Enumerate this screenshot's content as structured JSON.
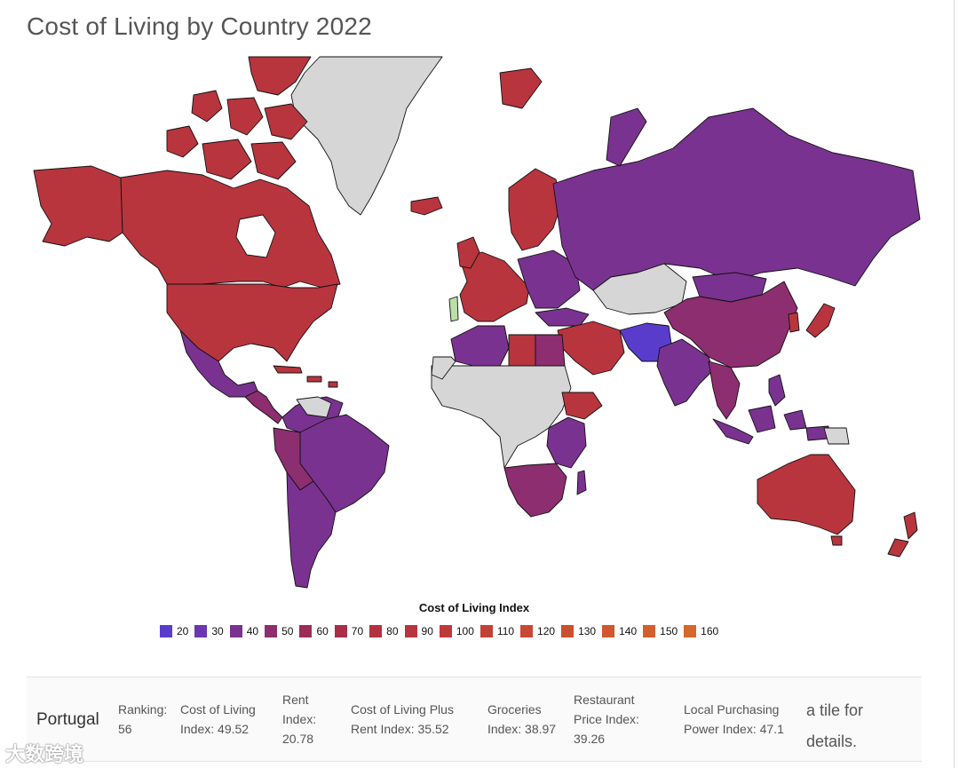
{
  "title": "Cost of Living by Country 2022",
  "legend": {
    "title": "Cost of Living Index",
    "items": [
      {
        "label": "20",
        "color": "#5a3ccc"
      },
      {
        "label": "30",
        "color": "#6b37b2"
      },
      {
        "label": "40",
        "color": "#7a3290"
      },
      {
        "label": "50",
        "color": "#8c2e70"
      },
      {
        "label": "60",
        "color": "#9c2c58"
      },
      {
        "label": "70",
        "color": "#a92e4a"
      },
      {
        "label": "80",
        "color": "#b23143"
      },
      {
        "label": "90",
        "color": "#b8353e"
      },
      {
        "label": "100",
        "color": "#bd3a3a"
      },
      {
        "label": "110",
        "color": "#c24136"
      },
      {
        "label": "120",
        "color": "#c74833"
      },
      {
        "label": "130",
        "color": "#cb5030"
      },
      {
        "label": "140",
        "color": "#cf582e"
      },
      {
        "label": "150",
        "color": "#d2602c"
      },
      {
        "label": "160",
        "color": "#d5682a"
      }
    ]
  },
  "colors": {
    "high": "#b8353e",
    "mid": "#8c2e70",
    "low": "#7a3290",
    "lowest": "#5a3ccc",
    "nodata": "#d6d6d6",
    "selected": "#b8e0a8"
  },
  "detail": {
    "country": "Portugal",
    "ranking_label": "Ranking:",
    "ranking_value": "56",
    "col_label": "Cost of Living",
    "col_label2": "Index:",
    "col_value": "49.52",
    "rent_label": "Rent",
    "rent_label2": "Index:",
    "rent_value": "20.78",
    "colp_label": "Cost of Living Plus",
    "colp_label2": "Rent Index:",
    "colp_value": "35.52",
    "groc_label": "Groceries",
    "groc_label2": "Index:",
    "groc_value": "38.97",
    "rest_label": "Restaurant",
    "rest_label2": "Price Index:",
    "rest_value": "39.26",
    "lpp_label": "Local Purchasing",
    "lpp_label2": "Power Index:",
    "lpp_value": "47.1",
    "hint": "a tile for details."
  },
  "watermark": "大数跨境"
}
